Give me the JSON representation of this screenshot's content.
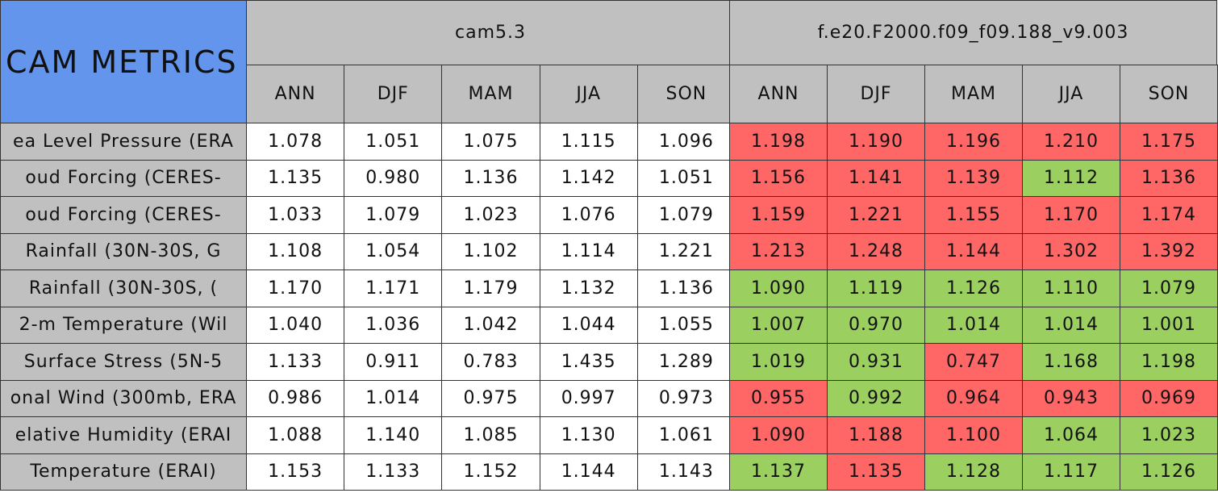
{
  "header": {
    "title": "CAM METRICS",
    "groups": [
      {
        "name": "cam5.3",
        "seasons": [
          "ANN",
          "DJF",
          "MAM",
          "JJA",
          "SON"
        ]
      },
      {
        "name": "f.e20.F2000.f09_f09.188_v9.003",
        "seasons": [
          "ANN",
          "DJF",
          "MAM",
          "JJA",
          "SON"
        ]
      }
    ]
  },
  "rows": [
    {
      "label": "ea Level Pressure (ERA",
      "cells": [
        "1.078",
        "1.051",
        "1.075",
        "1.115",
        "1.096",
        "1.198",
        "1.190",
        "1.196",
        "1.210",
        "1.175"
      ],
      "colors": [
        "#ffffff",
        "#ffffff",
        "#ffffff",
        "#ffffff",
        "#ffffff",
        "#ff6666",
        "#ff6666",
        "#ff6666",
        "#ff6666",
        "#ff6666"
      ]
    },
    {
      "label": "oud Forcing (CERES-",
      "cells": [
        "1.135",
        "0.980",
        "1.136",
        "1.142",
        "1.051",
        "1.156",
        "1.141",
        "1.139",
        "1.112",
        "1.136"
      ],
      "colors": [
        "#ffffff",
        "#ffffff",
        "#ffffff",
        "#ffffff",
        "#ffffff",
        "#ff6666",
        "#ff6666",
        "#ff6666",
        "#9bcf5f",
        "#ff6666"
      ]
    },
    {
      "label": "oud Forcing (CERES-",
      "cells": [
        "1.033",
        "1.079",
        "1.023",
        "1.076",
        "1.079",
        "1.159",
        "1.221",
        "1.155",
        "1.170",
        "1.174"
      ],
      "colors": [
        "#ffffff",
        "#ffffff",
        "#ffffff",
        "#ffffff",
        "#ffffff",
        "#ff6666",
        "#ff6666",
        "#ff6666",
        "#ff6666",
        "#ff6666"
      ]
    },
    {
      "label": "Rainfall (30N-30S, G",
      "cells": [
        "1.108",
        "1.054",
        "1.102",
        "1.114",
        "1.221",
        "1.213",
        "1.248",
        "1.144",
        "1.302",
        "1.392"
      ],
      "colors": [
        "#ffffff",
        "#ffffff",
        "#ffffff",
        "#ffffff",
        "#ffffff",
        "#ff6666",
        "#ff6666",
        "#ff6666",
        "#ff6666",
        "#ff6666"
      ]
    },
    {
      "label": "Rainfall (30N-30S, (",
      "cells": [
        "1.170",
        "1.171",
        "1.179",
        "1.132",
        "1.136",
        "1.090",
        "1.119",
        "1.126",
        "1.110",
        "1.079"
      ],
      "colors": [
        "#ffffff",
        "#ffffff",
        "#ffffff",
        "#ffffff",
        "#ffffff",
        "#9bcf5f",
        "#9bcf5f",
        "#9bcf5f",
        "#9bcf5f",
        "#9bcf5f"
      ]
    },
    {
      "label": "2-m Temperature (Wil",
      "cells": [
        "1.040",
        "1.036",
        "1.042",
        "1.044",
        "1.055",
        "1.007",
        "0.970",
        "1.014",
        "1.014",
        "1.001"
      ],
      "colors": [
        "#ffffff",
        "#ffffff",
        "#ffffff",
        "#ffffff",
        "#ffffff",
        "#9bcf5f",
        "#9bcf5f",
        "#9bcf5f",
        "#9bcf5f",
        "#9bcf5f"
      ]
    },
    {
      "label": "Surface Stress (5N-5",
      "cells": [
        "1.133",
        "0.911",
        "0.783",
        "1.435",
        "1.289",
        "1.019",
        "0.931",
        "0.747",
        "1.168",
        "1.198"
      ],
      "colors": [
        "#ffffff",
        "#ffffff",
        "#ffffff",
        "#ffffff",
        "#ffffff",
        "#9bcf5f",
        "#9bcf5f",
        "#ff6666",
        "#9bcf5f",
        "#9bcf5f"
      ]
    },
    {
      "label": "onal Wind (300mb, ERA",
      "cells": [
        "0.986",
        "1.014",
        "0.975",
        "0.997",
        "0.973",
        "0.955",
        "0.992",
        "0.964",
        "0.943",
        "0.969"
      ],
      "colors": [
        "#ffffff",
        "#ffffff",
        "#ffffff",
        "#ffffff",
        "#ffffff",
        "#ff6666",
        "#9bcf5f",
        "#ff6666",
        "#ff6666",
        "#ff6666"
      ]
    },
    {
      "label": "elative Humidity (ERAI",
      "cells": [
        "1.088",
        "1.140",
        "1.085",
        "1.130",
        "1.061",
        "1.090",
        "1.188",
        "1.100",
        "1.064",
        "1.023"
      ],
      "colors": [
        "#ffffff",
        "#ffffff",
        "#ffffff",
        "#ffffff",
        "#ffffff",
        "#ff6666",
        "#ff6666",
        "#ff6666",
        "#9bcf5f",
        "#9bcf5f"
      ]
    },
    {
      "label": "Temperature (ERAI)",
      "cells": [
        "1.153",
        "1.133",
        "1.152",
        "1.144",
        "1.143",
        "1.137",
        "1.135",
        "1.128",
        "1.117",
        "1.126"
      ],
      "colors": [
        "#ffffff",
        "#ffffff",
        "#ffffff",
        "#ffffff",
        "#ffffff",
        "#9bcf5f",
        "#ff6666",
        "#9bcf5f",
        "#9bcf5f",
        "#9bcf5f"
      ]
    }
  ]
}
